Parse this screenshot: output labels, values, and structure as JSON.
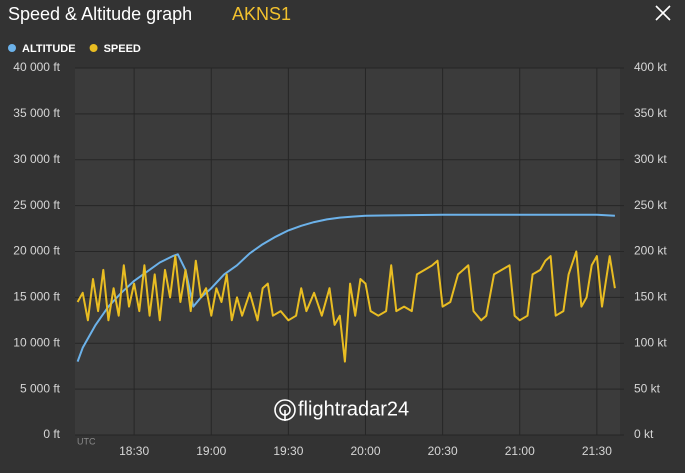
{
  "header": {
    "title": "Speed & Altitude graph",
    "flight": "AKNS1"
  },
  "chart_data": {
    "type": "line",
    "xlabel": "UTC",
    "watermark": "flightradar24",
    "xlim": [
      "18:07",
      "21:39"
    ],
    "xticks": [
      "18:30",
      "19:00",
      "19:30",
      "20:00",
      "20:30",
      "21:00",
      "21:30"
    ],
    "ylim": [
      0,
      40000
    ],
    "yticks": [
      {
        "value": 0,
        "label": "0 ft"
      },
      {
        "value": 5000,
        "label": "5 000 ft"
      },
      {
        "value": 10000,
        "label": "10 000 ft"
      },
      {
        "value": 15000,
        "label": "15 000 ft"
      },
      {
        "value": 20000,
        "label": "20 000 ft"
      },
      {
        "value": 25000,
        "label": "25 000 ft"
      },
      {
        "value": 30000,
        "label": "30 000 ft"
      },
      {
        "value": 35000,
        "label": "35 000 ft"
      },
      {
        "value": 40000,
        "label": "40 000 ft"
      }
    ],
    "y2lim": [
      0,
      400
    ],
    "y2ticks": [
      {
        "value": 0,
        "label": "0 kt"
      },
      {
        "value": 50,
        "label": "50 kt"
      },
      {
        "value": 100,
        "label": "100 kt"
      },
      {
        "value": 150,
        "label": "150 kt"
      },
      {
        "value": 200,
        "label": "200 kt"
      },
      {
        "value": 250,
        "label": "250 kt"
      },
      {
        "value": 300,
        "label": "300 kt"
      },
      {
        "value": 350,
        "label": "350 kt"
      },
      {
        "value": 400,
        "label": "400 kt"
      }
    ],
    "grid": true,
    "series": [
      {
        "name": "ALTITUDE",
        "color": "#6cb2ea",
        "x": [
          "18:08",
          "18:10",
          "18:15",
          "18:20",
          "18:25",
          "18:30",
          "18:35",
          "18:40",
          "18:45",
          "18:47",
          "18:50",
          "18:53",
          "18:56",
          "19:00",
          "19:05",
          "19:10",
          "19:15",
          "19:20",
          "19:25",
          "19:30",
          "19:35",
          "19:40",
          "19:45",
          "19:50",
          "19:55",
          "20:00",
          "20:30",
          "21:00",
          "21:30",
          "21:37"
        ],
        "values": [
          8000,
          9500,
          12000,
          14000,
          15500,
          16800,
          17800,
          18800,
          19500,
          19700,
          18000,
          14000,
          15000,
          16000,
          17500,
          18500,
          19800,
          20800,
          21600,
          22300,
          22800,
          23200,
          23500,
          23700,
          23800,
          23900,
          24000,
          24000,
          24000,
          23900
        ]
      },
      {
        "name": "SPEED",
        "color": "#e9bd22",
        "axis": "y2",
        "x": [
          "18:08",
          "18:10",
          "18:12",
          "18:14",
          "18:16",
          "18:18",
          "18:20",
          "18:22",
          "18:24",
          "18:26",
          "18:28",
          "18:30",
          "18:32",
          "18:34",
          "18:36",
          "18:38",
          "18:40",
          "18:42",
          "18:44",
          "18:46",
          "18:48",
          "18:50",
          "18:52",
          "18:54",
          "18:56",
          "18:58",
          "19:00",
          "19:02",
          "19:04",
          "19:06",
          "19:08",
          "19:10",
          "19:12",
          "19:15",
          "19:18",
          "19:20",
          "19:22",
          "19:24",
          "19:27",
          "19:30",
          "19:33",
          "19:35",
          "19:37",
          "19:40",
          "19:43",
          "19:46",
          "19:48",
          "19:50",
          "19:52",
          "19:54",
          "19:56",
          "19:58",
          "20:00",
          "20:02",
          "20:05",
          "20:08",
          "20:10",
          "20:12",
          "20:15",
          "20:18",
          "20:20",
          "20:23",
          "20:26",
          "20:28",
          "20:30",
          "20:33",
          "20:36",
          "20:38",
          "20:40",
          "20:42",
          "20:45",
          "20:47",
          "20:50",
          "20:53",
          "20:56",
          "20:58",
          "21:00",
          "21:03",
          "21:05",
          "21:08",
          "21:10",
          "21:12",
          "21:14",
          "21:17",
          "21:19",
          "21:22",
          "21:24",
          "21:26",
          "21:28",
          "21:30",
          "21:32",
          "21:35",
          "21:37"
        ],
        "values": [
          145,
          155,
          125,
          170,
          135,
          180,
          125,
          160,
          130,
          185,
          140,
          165,
          135,
          185,
          130,
          175,
          125,
          180,
          150,
          195,
          145,
          180,
          135,
          190,
          150,
          160,
          130,
          160,
          145,
          175,
          125,
          150,
          130,
          155,
          125,
          160,
          165,
          130,
          135,
          125,
          130,
          160,
          135,
          155,
          130,
          160,
          120,
          130,
          80,
          165,
          130,
          170,
          165,
          135,
          130,
          135,
          185,
          135,
          140,
          135,
          175,
          180,
          185,
          190,
          140,
          145,
          175,
          180,
          185,
          135,
          125,
          130,
          175,
          180,
          185,
          130,
          125,
          130,
          175,
          180,
          190,
          195,
          130,
          135,
          175,
          200,
          140,
          150,
          185,
          195,
          140,
          195,
          160
        ]
      }
    ]
  }
}
